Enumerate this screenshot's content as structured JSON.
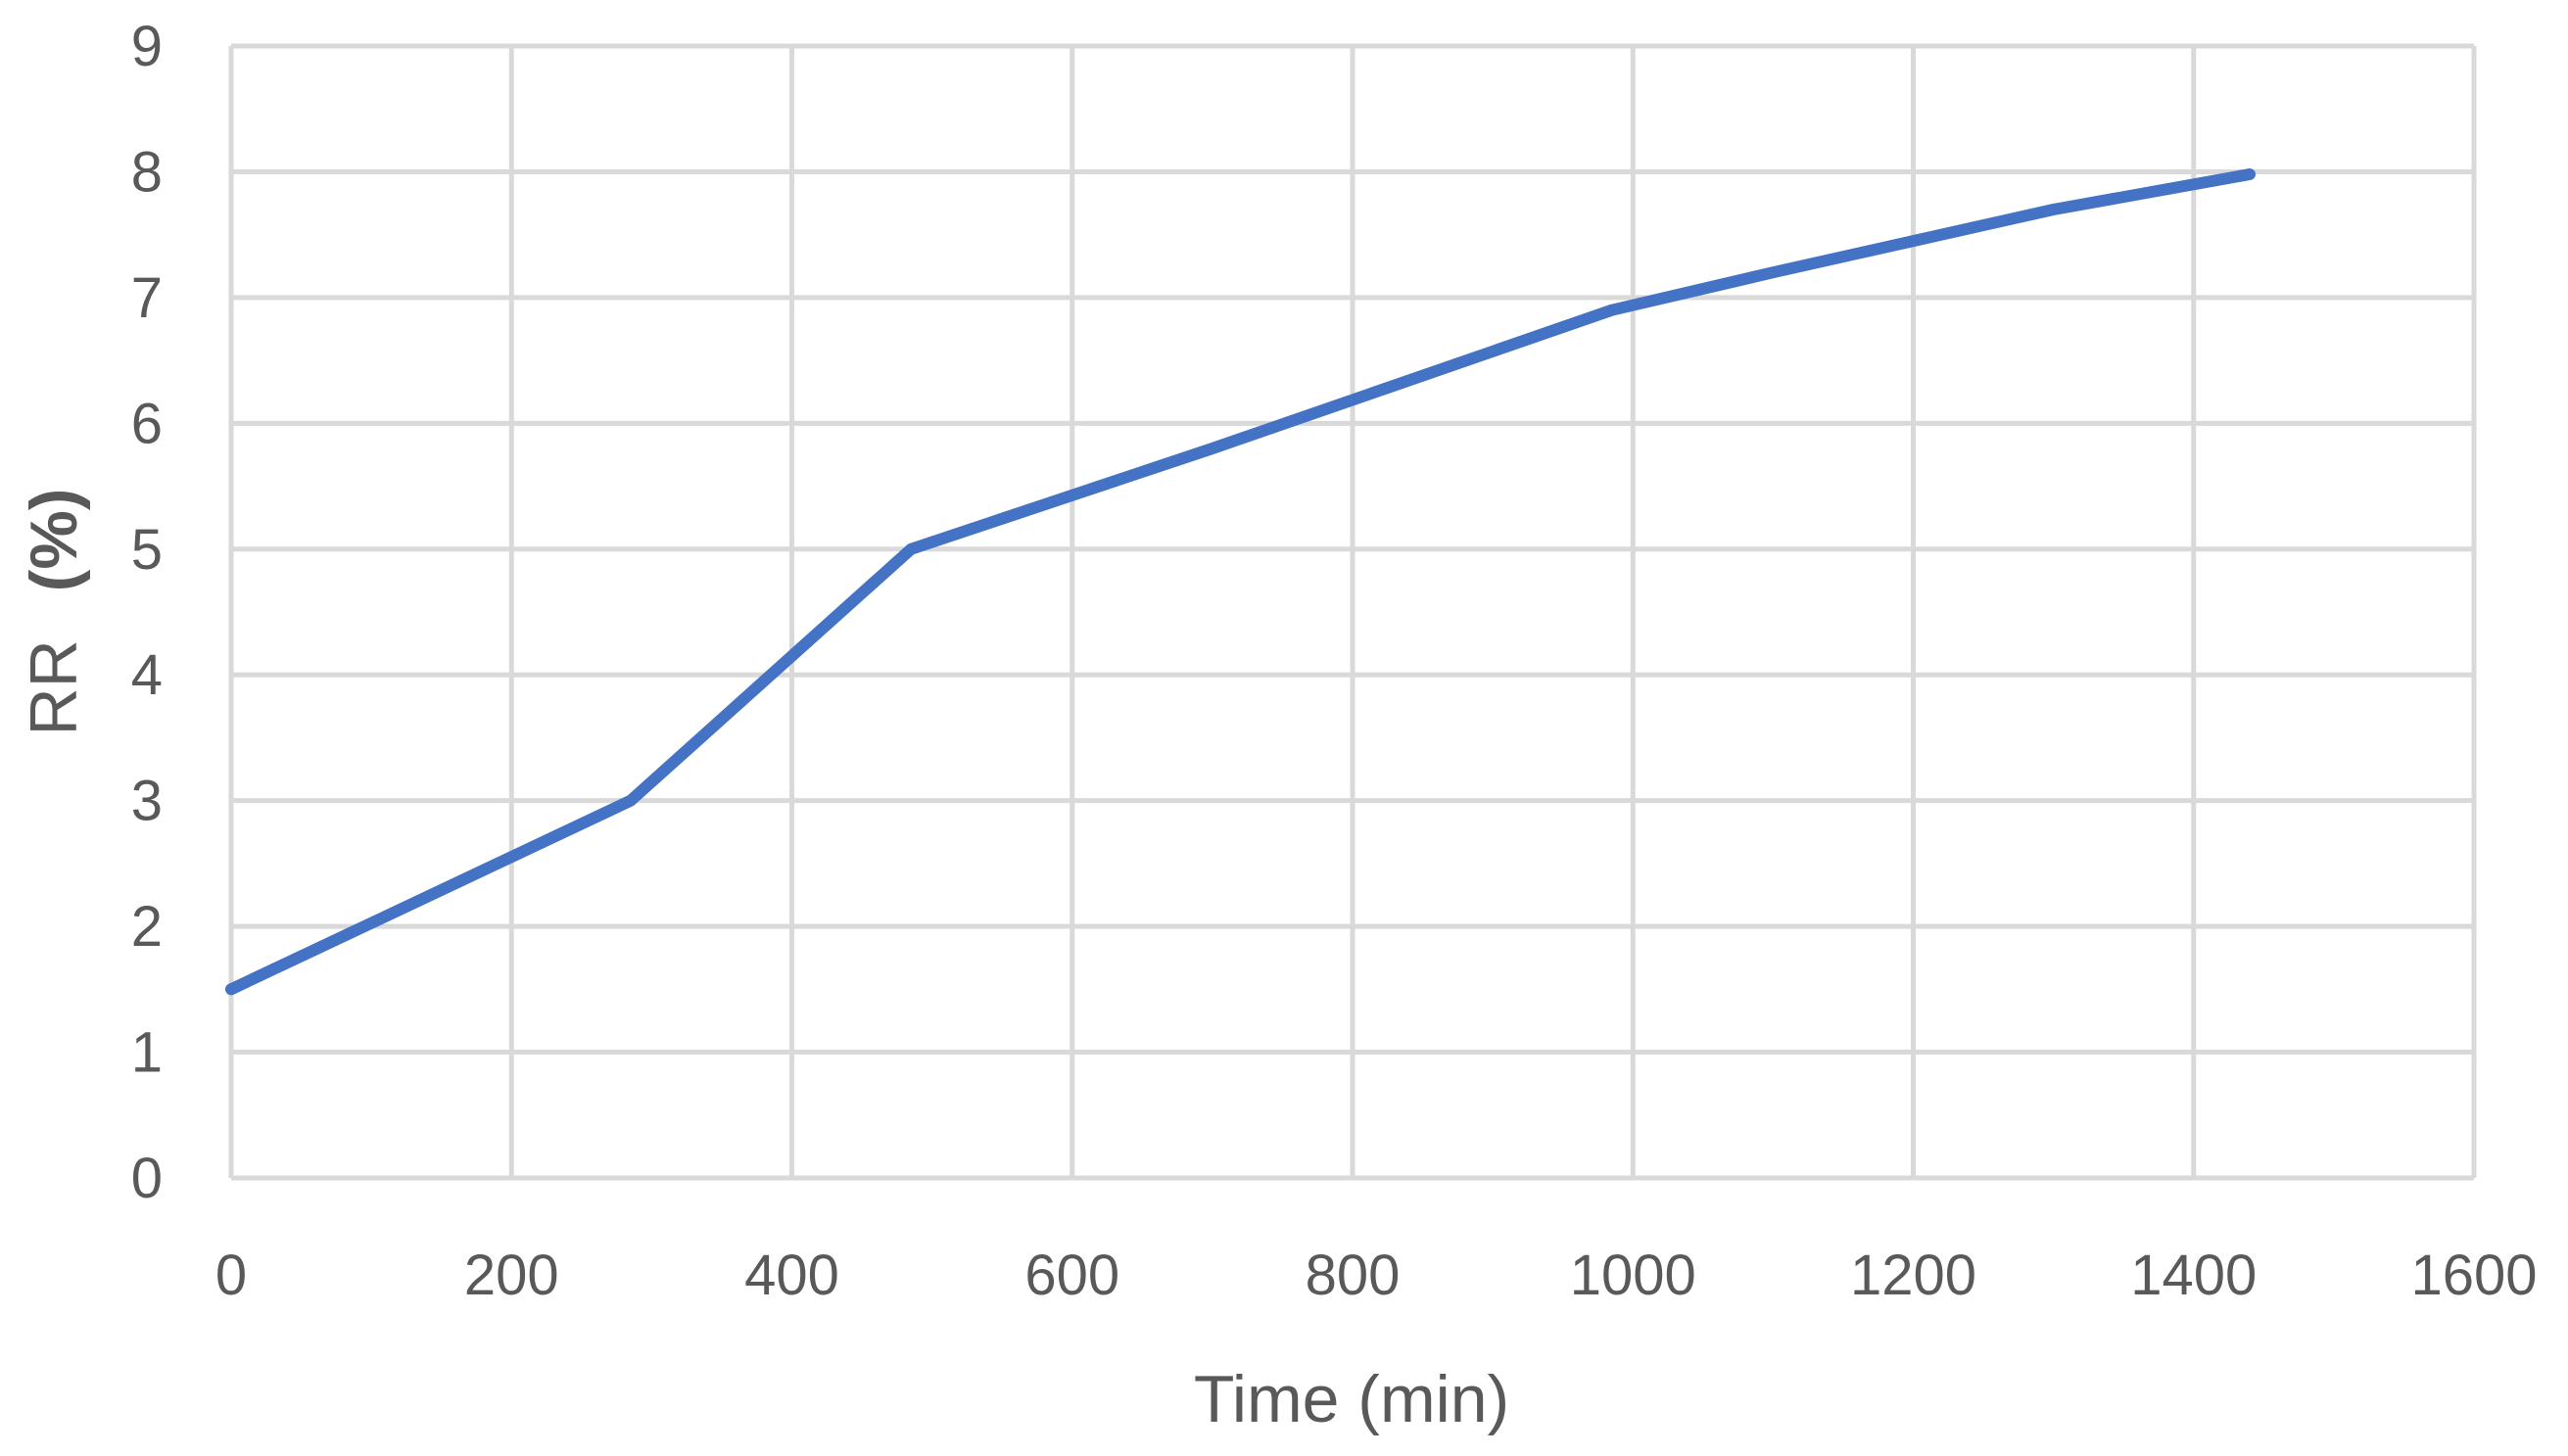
{
  "chart_data": {
    "type": "line",
    "title": "",
    "xlabel": "Time (min)",
    "ylabel_parts": [
      "RR",
      "(%)"
    ],
    "xlim": [
      0,
      1600
    ],
    "ylim": [
      0,
      9
    ],
    "x_ticks": [
      0,
      200,
      400,
      600,
      800,
      1000,
      1200,
      1400,
      1600
    ],
    "x_tick_labels": [
      "0",
      "200",
      "400",
      "600",
      "800",
      "1000",
      "1200",
      "1400",
      "1600"
    ],
    "y_ticks": [
      0,
      1,
      2,
      3,
      4,
      5,
      6,
      7,
      8,
      9
    ],
    "y_tick_labels": [
      "0",
      "1",
      "2",
      "3",
      "4",
      "5",
      "6",
      "7",
      "8",
      "9"
    ],
    "grid": true,
    "legend": "none",
    "series": [
      {
        "color": "#4472c4",
        "x": [
          0,
          285,
          485,
          700,
          985,
          1100,
          1200,
          1300,
          1440
        ],
        "y": [
          1.5,
          3.0,
          5.0,
          5.8,
          6.9,
          7.2,
          7.45,
          7.7,
          7.98
        ]
      }
    ]
  }
}
